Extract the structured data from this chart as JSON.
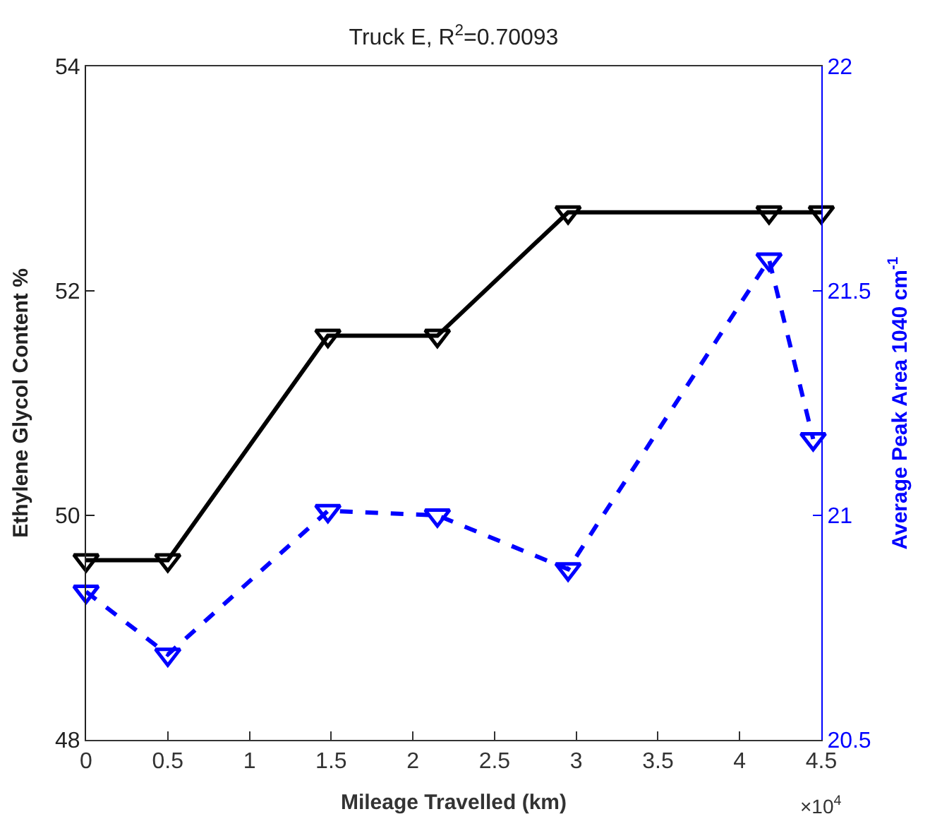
{
  "chart_data": {
    "type": "line",
    "title": "Truck E, R$^{2}$=0.70093",
    "xlabel": "Mileage Travelled (km)",
    "ylabel": "Ethylene Glycol Content %",
    "y2label": "Average Peak Area 1040 cm$^{-1}$",
    "annotations": [
      "×10$^{4}$"
    ],
    "series": [
      {
        "color": "#000000",
        "x": [
          0,
          0.5,
          1.48,
          2.15,
          2.95,
          4.18,
          4.5
        ],
        "values": [
          49.6,
          49.6,
          51.6,
          51.6,
          52.7,
          52.7,
          52.7
        ],
        "line_style": "solid",
        "marker": "triangle"
      },
      {
        "color": "#0000ff",
        "axis": "y2",
        "x": [
          0,
          0.5,
          1.48,
          2.15,
          2.95,
          4.18,
          4.45
        ],
        "values": [
          20.83,
          20.69,
          21.01,
          21.0,
          20.88,
          21.57,
          21.17
        ],
        "line_style": "dashed",
        "marker": "triangle"
      }
    ],
    "xlim": [
      0,
      4.5
    ],
    "xticks": [
      0,
      0.5,
      1,
      1.5,
      2,
      2.5,
      3,
      3.5,
      4,
      4.5
    ],
    "ylim": [
      48,
      54
    ],
    "yticks": [
      48,
      50,
      52,
      54
    ],
    "y2lim": [
      20.5,
      22
    ],
    "y2ticks": [
      20.5,
      21,
      21.5,
      22
    ],
    "grid": false
  }
}
